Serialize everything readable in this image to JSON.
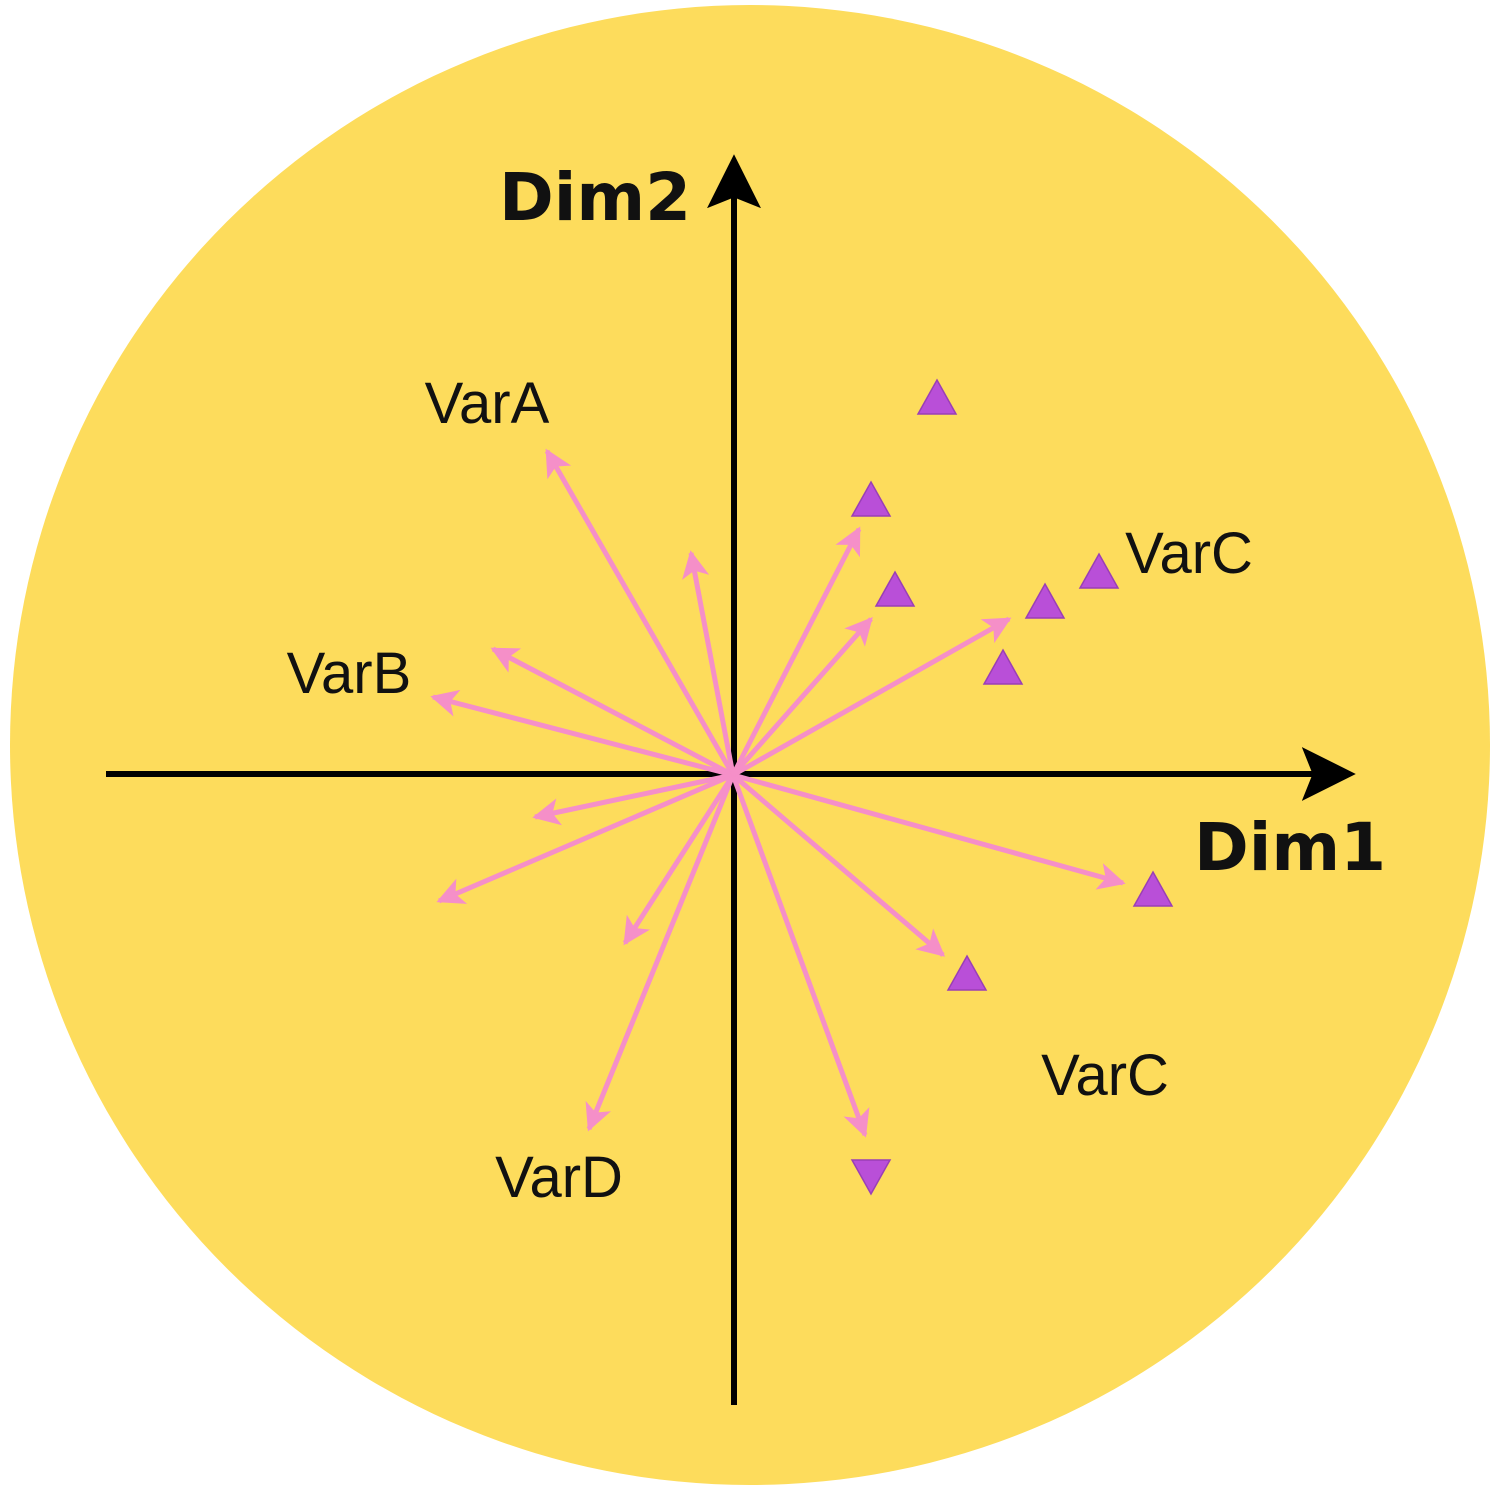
{
  "chart_data": {
    "type": "biplot",
    "xlabel": "Dim1",
    "ylabel": "Dim2",
    "grid": false,
    "colors": {
      "background": "#FDDC5C",
      "arrows": "#F58FC8",
      "points": "#B94FD8",
      "axes": "#000000",
      "text": "#111111"
    },
    "arrows": [
      {
        "x": -0.31,
        "y": 0.54
      },
      {
        "x": -0.07,
        "y": 0.37
      },
      {
        "x": -0.4,
        "y": 0.21
      },
      {
        "x": -0.5,
        "y": 0.13
      },
      {
        "x": -0.33,
        "y": -0.07
      },
      {
        "x": -0.49,
        "y": -0.21
      },
      {
        "x": -0.18,
        "y": -0.28
      },
      {
        "x": -0.24,
        "y": -0.59
      },
      {
        "x": 0.22,
        "y": -0.6
      },
      {
        "x": 0.35,
        "y": -0.3
      },
      {
        "x": 0.65,
        "y": -0.18
      },
      {
        "x": 0.46,
        "y": 0.26
      },
      {
        "x": 0.23,
        "y": 0.26
      },
      {
        "x": 0.21,
        "y": 0.41
      }
    ],
    "points": [
      {
        "x": 0.34,
        "y": 0.63,
        "marker": "triangle-up"
      },
      {
        "x": 0.23,
        "y": 0.46,
        "marker": "triangle-up"
      },
      {
        "x": 0.27,
        "y": 0.31,
        "marker": "triangle-up"
      },
      {
        "x": 0.61,
        "y": 0.34,
        "marker": "triangle-up"
      },
      {
        "x": 0.52,
        "y": 0.29,
        "marker": "triangle-up"
      },
      {
        "x": 0.45,
        "y": 0.18,
        "marker": "triangle-up"
      },
      {
        "x": 0.7,
        "y": -0.19,
        "marker": "triangle-up"
      },
      {
        "x": 0.39,
        "y": -0.33,
        "marker": "triangle-up"
      },
      {
        "x": 0.23,
        "y": -0.67,
        "marker": "triangle-down"
      }
    ],
    "annotations": [
      {
        "text": "VarA",
        "x": -0.41,
        "y": 0.62
      },
      {
        "text": "VarB",
        "x": -0.64,
        "y": 0.17
      },
      {
        "text": "VarC",
        "x": 0.76,
        "y": 0.37
      },
      {
        "text": "VarC",
        "x": 0.62,
        "y": -0.5
      },
      {
        "text": "VarD",
        "x": -0.29,
        "y": -0.67
      }
    ]
  }
}
